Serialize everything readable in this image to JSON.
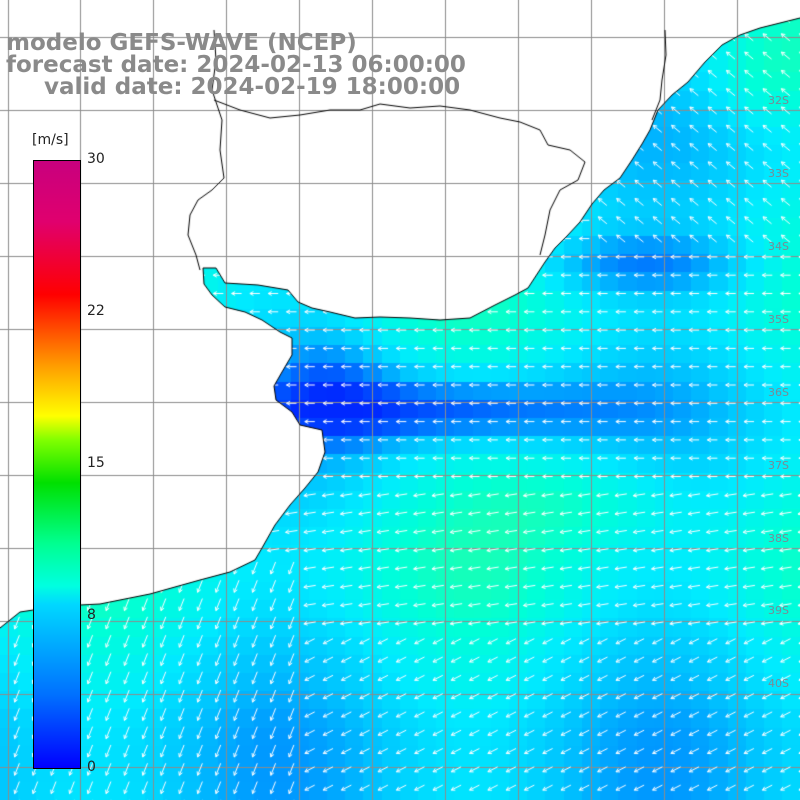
{
  "title": {
    "line1": "modelo GEFS-WAVE (NCEP)",
    "line2": "forecast date: 2024-02-13 06:00:00",
    "line3": "valid date: 2024-02-19 18:00:00"
  },
  "colorbar": {
    "unit": "[m/s]",
    "ticks": [
      "30",
      "22",
      "15",
      "8",
      "0"
    ],
    "colors": [
      "#0000ff",
      "#00a8ff",
      "#00ffe0",
      "#00e000",
      "#ffff00",
      "#ff5000",
      "#ff0000",
      "#c8007e"
    ]
  },
  "latitude_labels": [
    "32S",
    "33S",
    "34S",
    "35S",
    "36S",
    "37S",
    "38S",
    "39S",
    "40S"
  ],
  "colors": {
    "land": "#ffffff",
    "coastline": "#000000",
    "grid": "#8c8c8c",
    "arrows": "#ffffff"
  }
}
